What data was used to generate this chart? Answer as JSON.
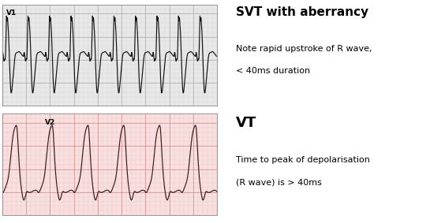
{
  "svt_label": "V1",
  "vt_label": "V2",
  "svt_title": "SVT with aberrancy",
  "svt_note1": "Note rapid upstroke of R wave,",
  "svt_note2": "< 40ms duration",
  "vt_title": "VT",
  "vt_note1": "Time to peak of depolarisation",
  "vt_note2": "(R wave) is > 40ms",
  "svt_bg": "#e8e8e8",
  "vt_bg": "#f9e0e0",
  "svt_grid_major": "#b0b0b0",
  "svt_grid_minor": "#d4d4d4",
  "vt_grid_major": "#d89090",
  "vt_grid_minor": "#ecc0c0",
  "ecg_color_svt": "#111111",
  "ecg_color_vt": "#3a1818",
  "panel_border": "#888888",
  "fig_bg": "#ffffff",
  "svt_title_size": 11,
  "svt_note_size": 8,
  "vt_title_size": 13,
  "vt_note_size": 8
}
